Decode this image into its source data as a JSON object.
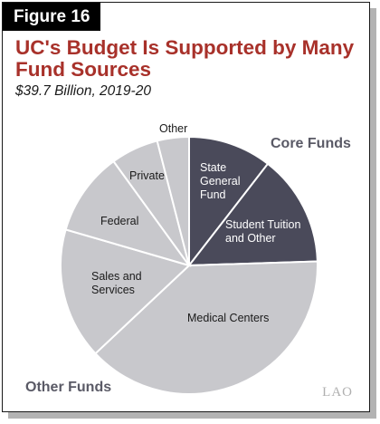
{
  "figure_label": "Figure 16",
  "title": "UC's Budget Is Supported by Many Fund Sources",
  "subtitle": "$39.7 Billion, 2019-20",
  "logo": "LAO",
  "colors": {
    "core": "#4a4a5a",
    "other": "#c8c8cc",
    "title": "#a8312a",
    "stroke": "#ffffff"
  },
  "chart_data": {
    "type": "pie",
    "groups": [
      {
        "name": "Core Funds",
        "categories": [
          "State General Fund",
          "Student Tuition and Other"
        ]
      },
      {
        "name": "Other Funds",
        "categories": [
          "Medical Centers",
          "Sales and Services",
          "Federal",
          "Private",
          "Other"
        ]
      }
    ],
    "slices": [
      {
        "label": "State General Fund",
        "lines": [
          "State",
          "General",
          "Fund"
        ],
        "value": 10.5,
        "group": "Core Funds"
      },
      {
        "label": "Student Tuition and Other",
        "lines": [
          "Student Tuition",
          "and Other"
        ],
        "value": 14.0,
        "group": "Core Funds"
      },
      {
        "label": "Medical Centers",
        "lines": [
          "Medical Centers"
        ],
        "value": 38.5,
        "group": "Other Funds"
      },
      {
        "label": "Sales and Services",
        "lines": [
          "Sales and",
          "Services"
        ],
        "value": 16.5,
        "group": "Other Funds"
      },
      {
        "label": "Federal",
        "lines": [
          "Federal"
        ],
        "value": 10.5,
        "group": "Other Funds"
      },
      {
        "label": "Private",
        "lines": [
          "Private"
        ],
        "value": 6.0,
        "group": "Other Funds"
      },
      {
        "label": "Other",
        "lines": [
          "Other"
        ],
        "value": 4.0,
        "group": "Other Funds"
      }
    ]
  }
}
